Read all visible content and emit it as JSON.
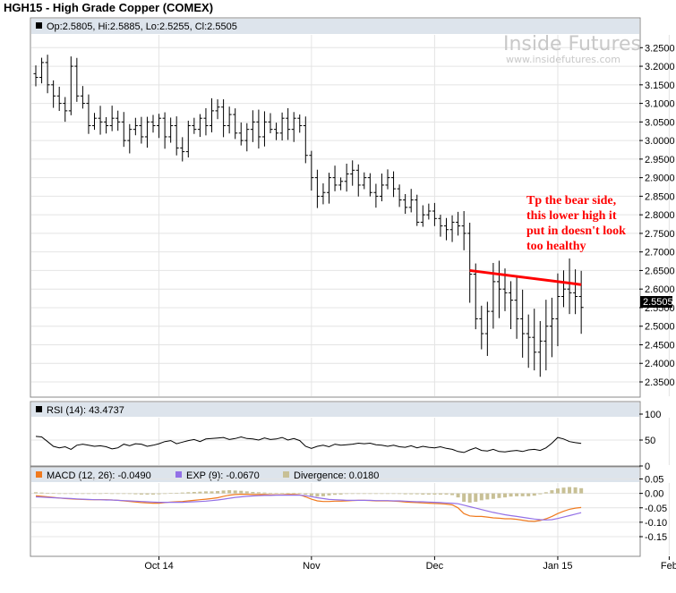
{
  "title": "HGH15 - High Grade Copper (COMEX)",
  "colors": {
    "annotation": "#ff0000",
    "macd": "#f07a1e",
    "exp": "#9370e6",
    "divergence": "#c8c096",
    "panel_header": "#dde4ec"
  },
  "watermark": {
    "brand": "Inside Futures",
    "url": "www.insidefutures.com"
  },
  "chart_data": [
    {
      "panel": "price",
      "type": "ohlc",
      "legend": "Op:2.5805, Hi:2.5885, Lo:2.5255, Cl:2.5505",
      "last_value_label": "2.5505",
      "ylim": [
        2.35,
        3.27
      ],
      "yticks": [
        "3.2500",
        "3.2000",
        "3.1500",
        "3.1000",
        "3.0500",
        "3.0000",
        "2.9500",
        "2.9000",
        "2.8500",
        "2.8000",
        "2.7500",
        "2.7000",
        "2.6500",
        "2.6000",
        "2.5500",
        "2.5000",
        "2.4500",
        "2.4000",
        "2.3500"
      ],
      "x_axis": {
        "labels": [
          "Oct 14",
          "Nov",
          "Dec",
          "Jan 15",
          "Feb"
        ],
        "label_index": [
          21,
          47,
          68,
          89,
          108
        ]
      },
      "closes": [
        3.17,
        3.21,
        3.15,
        3.12,
        3.1,
        3.08,
        3.2,
        3.12,
        3.1,
        3.04,
        3.06,
        3.05,
        3.04,
        3.06,
        3.05,
        3.0,
        3.03,
        3.04,
        3.01,
        3.05,
        3.04,
        3.06,
        3.01,
        3.04,
        2.98,
        2.97,
        3.04,
        3.03,
        3.06,
        3.04,
        3.08,
        3.09,
        3.04,
        3.07,
        3.02,
        3.0,
        3.03,
        3.05,
        3.01,
        3.05,
        3.03,
        3.02,
        3.06,
        3.03,
        3.06,
        3.04,
        2.96,
        2.9,
        2.85,
        2.86,
        2.9,
        2.88,
        2.89,
        2.91,
        2.92,
        2.88,
        2.9,
        2.86,
        2.85,
        2.88,
        2.9,
        2.87,
        2.84,
        2.82,
        2.84,
        2.78,
        2.8,
        2.81,
        2.79,
        2.77,
        2.76,
        2.78,
        2.77,
        2.75,
        2.64,
        2.52,
        2.48,
        2.54,
        2.62,
        2.6,
        2.59,
        2.57,
        2.52,
        2.48,
        2.47,
        2.43,
        2.46,
        2.5,
        2.52,
        2.58,
        2.6,
        2.59,
        2.58,
        2.5505
      ],
      "annotations": [
        {
          "type": "trendline",
          "from": [
            74,
            2.65
          ],
          "to": [
            93,
            2.612
          ]
        }
      ],
      "note_lines": [
        "Tp the bear side,",
        "this lower high it",
        "put in doesn't look",
        "too healthy"
      ]
    },
    {
      "panel": "rsi",
      "type": "line",
      "legend": "RSI (14): 43.4737",
      "ylim": [
        0,
        100
      ],
      "yticks": [
        "100",
        "50",
        "0"
      ],
      "values": [
        57,
        56,
        47,
        38,
        35,
        37,
        32,
        40,
        42,
        40,
        38,
        39,
        37,
        33,
        35,
        42,
        39,
        43,
        42,
        38,
        40,
        43,
        47,
        49,
        43,
        46,
        49,
        51,
        47,
        52,
        53,
        54,
        55,
        51,
        53,
        56,
        53,
        52,
        50,
        54,
        51,
        52,
        55,
        50,
        53,
        49,
        38,
        34,
        38,
        40,
        37,
        42,
        40,
        41,
        42,
        44,
        43,
        44,
        41,
        40,
        38,
        40,
        37,
        36,
        39,
        35,
        38,
        36,
        35,
        37,
        34,
        32,
        28,
        26,
        31,
        35,
        30,
        29,
        32,
        28,
        27,
        29,
        30,
        28,
        31,
        32,
        30,
        35,
        44,
        55,
        52,
        47,
        45,
        43.47
      ]
    },
    {
      "panel": "macd",
      "type": "line",
      "legend": {
        "macd": "MACD (12, 26): -0.0490",
        "exp": "EXP (9): -0.0670",
        "divergence": "Divergence: 0.0180"
      },
      "ylim": [
        -0.13,
        0.07
      ],
      "yticks": [
        "0.05",
        "0.00",
        "-0.05",
        "-0.10",
        "-0.15"
      ],
      "series": [
        {
          "name": "MACD (12, 26)",
          "values": [
            -0.008,
            -0.01,
            -0.012,
            -0.014,
            -0.016,
            -0.018,
            -0.019,
            -0.02,
            -0.021,
            -0.022,
            -0.022,
            -0.022,
            -0.022,
            -0.023,
            -0.024,
            -0.026,
            -0.028,
            -0.03,
            -0.032,
            -0.033,
            -0.034,
            -0.034,
            -0.032,
            -0.03,
            -0.029,
            -0.028,
            -0.026,
            -0.024,
            -0.022,
            -0.02,
            -0.018,
            -0.015,
            -0.01,
            -0.006,
            -0.004,
            -0.003,
            -0.003,
            -0.004,
            -0.004,
            -0.004,
            -0.005,
            -0.005,
            -0.005,
            -0.004,
            -0.004,
            -0.005,
            -0.012,
            -0.02,
            -0.026,
            -0.028,
            -0.028,
            -0.027,
            -0.027,
            -0.026,
            -0.025,
            -0.024,
            -0.024,
            -0.025,
            -0.026,
            -0.026,
            -0.026,
            -0.027,
            -0.028,
            -0.03,
            -0.031,
            -0.032,
            -0.033,
            -0.034,
            -0.035,
            -0.036,
            -0.037,
            -0.04,
            -0.05,
            -0.07,
            -0.078,
            -0.08,
            -0.08,
            -0.082,
            -0.085,
            -0.086,
            -0.088,
            -0.088,
            -0.09,
            -0.093,
            -0.096,
            -0.097,
            -0.094,
            -0.088,
            -0.08,
            -0.07,
            -0.062,
            -0.055,
            -0.051,
            -0.049
          ]
        },
        {
          "name": "EXP (9)",
          "values": [
            -0.012,
            -0.013,
            -0.014,
            -0.015,
            -0.016,
            -0.017,
            -0.018,
            -0.019,
            -0.02,
            -0.021,
            -0.022,
            -0.022,
            -0.023,
            -0.023,
            -0.024,
            -0.025,
            -0.026,
            -0.027,
            -0.028,
            -0.029,
            -0.03,
            -0.031,
            -0.031,
            -0.031,
            -0.031,
            -0.031,
            -0.03,
            -0.029,
            -0.028,
            -0.027,
            -0.025,
            -0.023,
            -0.02,
            -0.017,
            -0.014,
            -0.012,
            -0.01,
            -0.009,
            -0.008,
            -0.007,
            -0.007,
            -0.006,
            -0.006,
            -0.006,
            -0.006,
            -0.006,
            -0.008,
            -0.011,
            -0.015,
            -0.018,
            -0.021,
            -0.022,
            -0.023,
            -0.024,
            -0.024,
            -0.024,
            -0.024,
            -0.024,
            -0.025,
            -0.025,
            -0.025,
            -0.026,
            -0.026,
            -0.027,
            -0.028,
            -0.029,
            -0.029,
            -0.03,
            -0.031,
            -0.032,
            -0.033,
            -0.034,
            -0.036,
            -0.041,
            -0.046,
            -0.051,
            -0.056,
            -0.061,
            -0.066,
            -0.07,
            -0.074,
            -0.077,
            -0.08,
            -0.083,
            -0.086,
            -0.089,
            -0.091,
            -0.092,
            -0.091,
            -0.087,
            -0.082,
            -0.077,
            -0.072,
            -0.067
          ]
        },
        {
          "name": "Divergence",
          "type": "bar",
          "values": [
            0.004,
            0.003,
            0.002,
            0.001,
            0,
            -0.001,
            -0.001,
            -0.001,
            -0.001,
            -0.001,
            0,
            0,
            0.001,
            0,
            0,
            -0.001,
            -0.002,
            -0.003,
            -0.004,
            -0.004,
            -0.004,
            -0.003,
            -0.001,
            0.001,
            0.002,
            0.003,
            0.004,
            0.005,
            0.006,
            0.007,
            0.007,
            0.008,
            0.01,
            0.011,
            0.01,
            0.009,
            0.007,
            0.005,
            0.004,
            0.003,
            0.002,
            0.001,
            0.001,
            0.002,
            0.002,
            0.001,
            -0.004,
            -0.009,
            -0.011,
            -0.01,
            -0.007,
            -0.005,
            -0.004,
            -0.002,
            -0.001,
            0,
            0,
            -0.001,
            -0.001,
            -0.001,
            -0.001,
            -0.001,
            -0.002,
            -0.003,
            -0.003,
            -0.003,
            -0.004,
            -0.004,
            -0.004,
            -0.004,
            -0.004,
            -0.006,
            -0.014,
            -0.029,
            -0.032,
            -0.029,
            -0.024,
            -0.021,
            -0.019,
            -0.016,
            -0.014,
            -0.011,
            -0.01,
            -0.01,
            -0.01,
            -0.008,
            -0.003,
            0.004,
            0.011,
            0.017,
            0.02,
            0.022,
            0.021,
            0.018
          ]
        }
      ]
    }
  ]
}
